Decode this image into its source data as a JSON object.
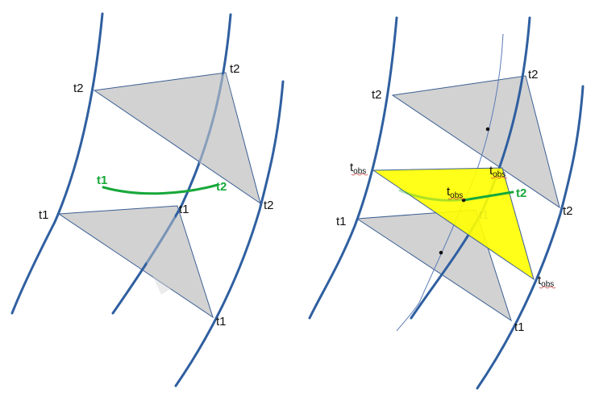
{
  "colors": {
    "worldline": "#2f5fa0",
    "triangle_fill": "#d2d2d2",
    "triangle_edge": "#3b5f93",
    "observer_fill": "#ffff00",
    "green": "#17a83a",
    "observer_line": "#5a7bb5"
  },
  "left_panel": {
    "labels": {
      "t2_left": "t2",
      "t2_top": "t2",
      "t2_right": "t2",
      "t1_left": "t1",
      "t1_mid": "t1",
      "t1_bottom": "t1",
      "green_t1": "t1",
      "green_t2": "t2"
    }
  },
  "right_panel": {
    "labels": {
      "t2_left": "t2",
      "t2_top": "t2",
      "t2_right": "t2",
      "t1_left": "t1",
      "t1_mid": "t1",
      "t1_bottom": "t1",
      "green_t2": "t2",
      "tobs_base": "t",
      "tobs_sub": "obs"
    }
  }
}
